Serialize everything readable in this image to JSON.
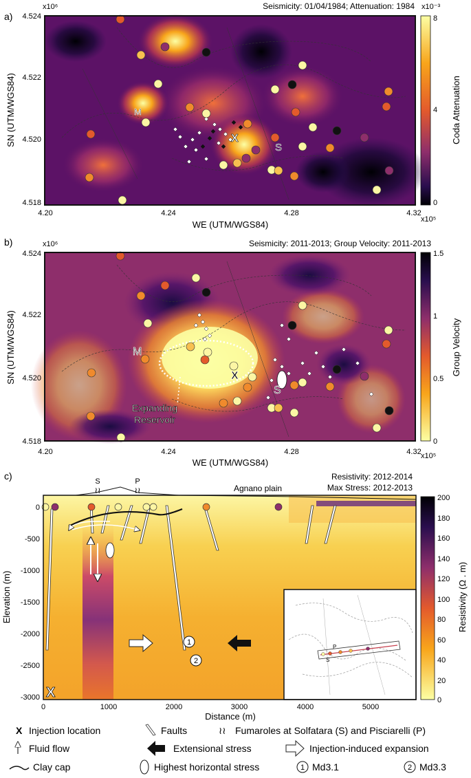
{
  "panel_labels": {
    "a": "a)",
    "b": "b)",
    "c": "c)"
  },
  "common": {
    "xlabel": "WE (UTM/WGS84)",
    "ylabel": "SN (UTM/WGS84)",
    "x_exponent": "x10⁵",
    "y_exponent": "x10⁶",
    "x_ticks": [
      "4.20",
      "4.24",
      "4.28",
      "4.32"
    ],
    "y_ticks": [
      "4.518",
      "4.520",
      "4.522",
      "4.524"
    ],
    "marker_M": "M",
    "marker_S": "S",
    "marker_X": "X"
  },
  "panel_a": {
    "title": "Seismicity: 01/04/1984; Attenuation: 1984",
    "colorbar_label": "Coda Attenuation",
    "colorbar_exponent": "x10⁻³",
    "colorbar_ticks": [
      "8",
      "4",
      "0"
    ]
  },
  "panel_b": {
    "title": "Seismicity: 2011-2013; Group Velocity: 2011-2013",
    "colorbar_label": "Group Velocity",
    "colorbar_ticks": [
      "1.5",
      "1",
      "0.5",
      "0"
    ],
    "reservoir_label_1": "Expanding",
    "reservoir_label_2": "Reservoir"
  },
  "panel_c": {
    "title_1": "Resistivity: 2012-2014",
    "title_2": "Max Stress: 2012-2013",
    "xlabel": "Distance (m)",
    "ylabel": "Elevation (m)",
    "x_ticks": [
      "0",
      "1000",
      "2000",
      "3000",
      "4000",
      "5000"
    ],
    "y_ticks": [
      "0",
      "-500",
      "-1000",
      "-1500",
      "-2000",
      "-2500",
      "-3000"
    ],
    "colorbar_label": "Resistivity (Ω . m)",
    "colorbar_ticks": [
      "200",
      "180",
      "160",
      "140",
      "120",
      "100",
      "80",
      "60",
      "40",
      "20",
      "0"
    ],
    "label_S": "S",
    "label_P": "P",
    "label_agnano": "Agnano plain",
    "label_X": "X",
    "label_1": "1",
    "label_2": "2",
    "inset_S": "S",
    "inset_P": "P"
  },
  "legend": {
    "injection": "Injection location",
    "faults": "Faults",
    "fumaroles": "Fumaroles at Solfatara (S) and Pisciarelli (P)",
    "fluid_flow": "Fluid flow",
    "extensional": "Extensional stress",
    "expansion": "Injection-induced expansion",
    "clay_cap": "Clay cap",
    "highest_stress": "Highest horizontal stress",
    "md31_num": "1",
    "md31": "Md3.1",
    "md33_num": "2",
    "md33": "Md3.3",
    "fumarole_symbol": "≀≀",
    "injection_symbol": "X"
  },
  "chart_data": [
    {
      "type": "heatmap",
      "title": "Seismicity: 01/04/1984; Attenuation: 1984",
      "xlabel": "WE (UTM/WGS84)",
      "ylabel": "SN (UTM/WGS84)",
      "xlim": [
        4.2,
        4.32
      ],
      "ylim": [
        4.518,
        4.524
      ],
      "colorbar": {
        "label": "Coda Attenuation",
        "range": [
          0,
          8
        ],
        "scale": "x10^-3"
      }
    },
    {
      "type": "heatmap",
      "title": "Seismicity: 2011-2013; Group Velocity: 2011-2013",
      "xlabel": "WE (UTM/WGS84)",
      "ylabel": "SN (UTM/WGS84)",
      "xlim": [
        4.2,
        4.32
      ],
      "ylim": [
        4.518,
        4.524
      ],
      "colorbar": {
        "label": "Group Velocity",
        "range": [
          0,
          1.5
        ]
      }
    },
    {
      "type": "heatmap",
      "title": "Resistivity: 2012-2014; Max Stress: 2012-2013",
      "xlabel": "Distance (m)",
      "ylabel": "Elevation (m)",
      "xlim": [
        0,
        5700
      ],
      "ylim": [
        -3000,
        0
      ],
      "colorbar": {
        "label": "Resistivity (Ω . m)",
        "range": [
          0,
          200
        ]
      }
    }
  ]
}
